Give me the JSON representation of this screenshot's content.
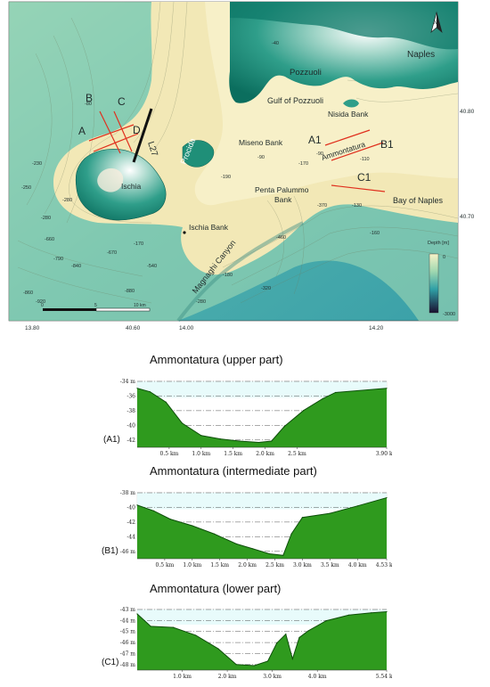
{
  "map": {
    "place_labels": {
      "naples": "Naples",
      "pozzuoli": "Pozzuoli",
      "gulf_pozzuoli": "Gulf of Pozzuoli",
      "nisida_bank": "Nisida Bank",
      "miseno_bank": "Miseno Bank",
      "ammontatura": "Ammontatura",
      "procida": "Procida",
      "ischia": "Ischia",
      "penta_palummo": "Penta Palummo",
      "penta_bank": "Bank",
      "bay_naples": "Bay of Naples",
      "ischia_bank": "Ischia Bank",
      "magnaghi": "Magnaghi Canyon"
    },
    "section_labels": {
      "a": "A",
      "b": "B",
      "c": "C",
      "d": "D",
      "a1": "A1",
      "b1": "B1",
      "c1": "C1",
      "l27": "L27"
    },
    "lon_ticks": [
      "13.80",
      "40.60",
      "14.00",
      "14.20"
    ],
    "lat_ticks": [
      "40.80",
      "40.70"
    ],
    "legend": {
      "title": "Depth [m]",
      "max": "0",
      "min": "-3000"
    },
    "scale": {
      "zero": "0",
      "mid": "5",
      "end": "10 km"
    },
    "depth_labels": [
      "-230",
      "-250",
      "-280",
      "-280",
      "-660",
      "-790",
      "-840",
      "-860",
      "-920",
      "-670",
      "-170",
      "-540",
      "-880",
      "-460",
      "-320",
      "-370",
      "-110",
      "-90",
      "-130",
      "-190",
      "-90",
      "-170",
      "-80",
      "-160",
      "-40",
      "-280",
      "-180"
    ],
    "colors": {
      "land_dark": "#0f7a6a",
      "land_mid": "#2f9e8a",
      "shelf": "#f3eab9",
      "slope": "#cfe5a6",
      "deep": "#58b8b0",
      "section_line": "#e0301e"
    },
    "north_arrow": "north-arrow-icon"
  },
  "profiles": [
    {
      "id": "(A1)",
      "title": "Ammontatura (upper part)",
      "chart_data": {
        "type": "area",
        "x_unit": "km",
        "y_unit": "m",
        "x": [
          0,
          0.2,
          0.45,
          0.7,
          1.0,
          1.3,
          1.6,
          1.9,
          2.1,
          2.3,
          2.6,
          2.9,
          3.1,
          3.9
        ],
        "y": [
          -35,
          -35.5,
          -37,
          -40,
          -41.8,
          -42.3,
          -42.6,
          -42.8,
          -42.6,
          -40.5,
          -38.2,
          -36.5,
          -35.6,
          -35
        ],
        "xlim": [
          0,
          3.9
        ],
        "ylim": [
          -43.5,
          -34
        ],
        "x_ticks": [
          "0.5 km",
          "1.0 km",
          "1.5 km",
          "2.0 km",
          "2.5 km",
          "3.90 km"
        ],
        "y_ticks": [
          "-34 m",
          "-36",
          "-38",
          "-40",
          "-42"
        ]
      }
    },
    {
      "id": "(B1)",
      "title": "Ammontatura (intermediate part)",
      "chart_data": {
        "type": "area",
        "x_unit": "km",
        "y_unit": "m",
        "x": [
          0,
          0.3,
          0.6,
          1.0,
          1.4,
          1.8,
          2.1,
          2.4,
          2.65,
          2.8,
          3.0,
          3.5,
          4.0,
          4.53
        ],
        "y": [
          -39.5,
          -40.2,
          -41.2,
          -42,
          -43,
          -44.2,
          -44.8,
          -45.4,
          -45.6,
          -43,
          -41,
          -40.5,
          -39.6,
          -38.6
        ],
        "xlim": [
          0,
          4.53
        ],
        "ylim": [
          -46,
          -38
        ],
        "x_ticks": [
          "0.5 km",
          "1.0 km",
          "1.5 km",
          "2.0 km",
          "2.5 km",
          "3.0 km",
          "3.5 km",
          "4.0 km",
          "4.53 km"
        ],
        "y_ticks": [
          "-38 m",
          "-40",
          "-42",
          "-44",
          "-46 m"
        ]
      }
    },
    {
      "id": "(C1)",
      "title": "Ammontatura (lower part)",
      "chart_data": {
        "type": "area",
        "x_unit": "km",
        "y_unit": "m",
        "x": [
          0,
          0.3,
          0.8,
          1.3,
          1.8,
          2.2,
          2.6,
          2.9,
          3.1,
          3.3,
          3.45,
          3.6,
          3.8,
          4.2,
          4.7,
          5.2,
          5.54
        ],
        "y": [
          -43.4,
          -44.5,
          -44.6,
          -45.3,
          -46.5,
          -47.9,
          -48,
          -47.6,
          -46,
          -45.2,
          -47.4,
          -45.5,
          -44.9,
          -44,
          -43.5,
          -43.3,
          -43.2
        ],
        "xlim": [
          0,
          5.54
        ],
        "ylim": [
          -48.4,
          -43
        ],
        "x_ticks": [
          "1.0 km",
          "2.0 km",
          "3.0 km",
          "4.0 km",
          "5.54 km"
        ],
        "y_ticks": [
          "-43 m",
          "-44 m",
          "-45 m",
          "-46 m",
          "-47 m",
          "-48 m"
        ]
      }
    }
  ]
}
